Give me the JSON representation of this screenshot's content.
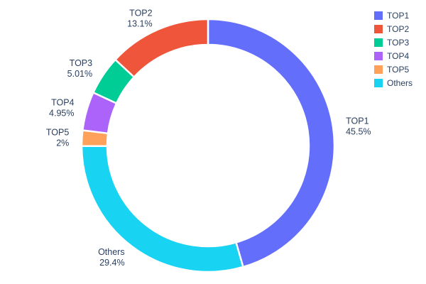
{
  "chart_data": {
    "type": "pie",
    "donut": true,
    "title": "",
    "legend_position": "top-right",
    "background": "#ffffff",
    "text_color": "#2a3f5f",
    "slices": [
      {
        "label": "TOP1",
        "value": 45.5,
        "pct_label": "45.5%",
        "color": "#636EFA"
      },
      {
        "label": "TOP2",
        "value": 13.1,
        "pct_label": "13.1%",
        "color": "#EF553B"
      },
      {
        "label": "TOP3",
        "value": 5.01,
        "pct_label": "5.01%",
        "color": "#00CC96"
      },
      {
        "label": "TOP4",
        "value": 4.95,
        "pct_label": "4.95%",
        "color": "#AB63FA"
      },
      {
        "label": "TOP5",
        "value": 2,
        "pct_label": "2%",
        "color": "#FFA15A"
      },
      {
        "label": "Others",
        "value": 29.4,
        "pct_label": "29.4%",
        "color": "#19D3F3"
      }
    ],
    "draw_order_clockwise_from_top": [
      0,
      5,
      4,
      3,
      2,
      1
    ]
  }
}
